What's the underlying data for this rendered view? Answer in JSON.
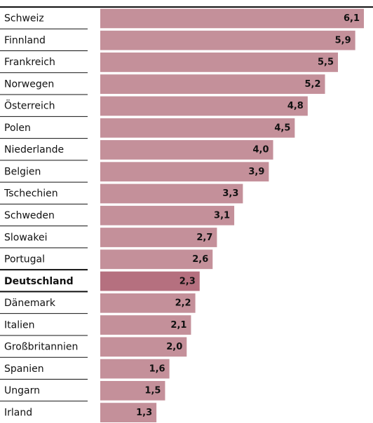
{
  "chart_data": {
    "type": "bar",
    "orientation": "horizontal",
    "categories": [
      "Schweiz",
      "Finnland",
      "Frankreich",
      "Norwegen",
      "Österreich",
      "Polen",
      "Niederlande",
      "Belgien",
      "Tschechien",
      "Schweden",
      "Slowakei",
      "Portugal",
      "Deutschland",
      "Dänemark",
      "Italien",
      "Großbritannien",
      "Spanien",
      "Ungarn",
      "Irland"
    ],
    "values": [
      6.1,
      5.9,
      5.5,
      5.2,
      4.8,
      4.5,
      4.0,
      3.9,
      3.3,
      3.1,
      2.7,
      2.6,
      2.3,
      2.2,
      2.1,
      2.0,
      1.6,
      1.5,
      1.3
    ],
    "value_labels": [
      "6,1",
      "5,9",
      "5,5",
      "5,2",
      "4,8",
      "4,5",
      "4,0",
      "3,9",
      "3,3",
      "3,1",
      "2,7",
      "2,6",
      "2,3",
      "2,2",
      "2,1",
      "2,0",
      "1,6",
      "1,5",
      "1,3"
    ],
    "color": "#c4909a",
    "highlight": 12,
    "highlight_color": "#b5707f"
  }
}
